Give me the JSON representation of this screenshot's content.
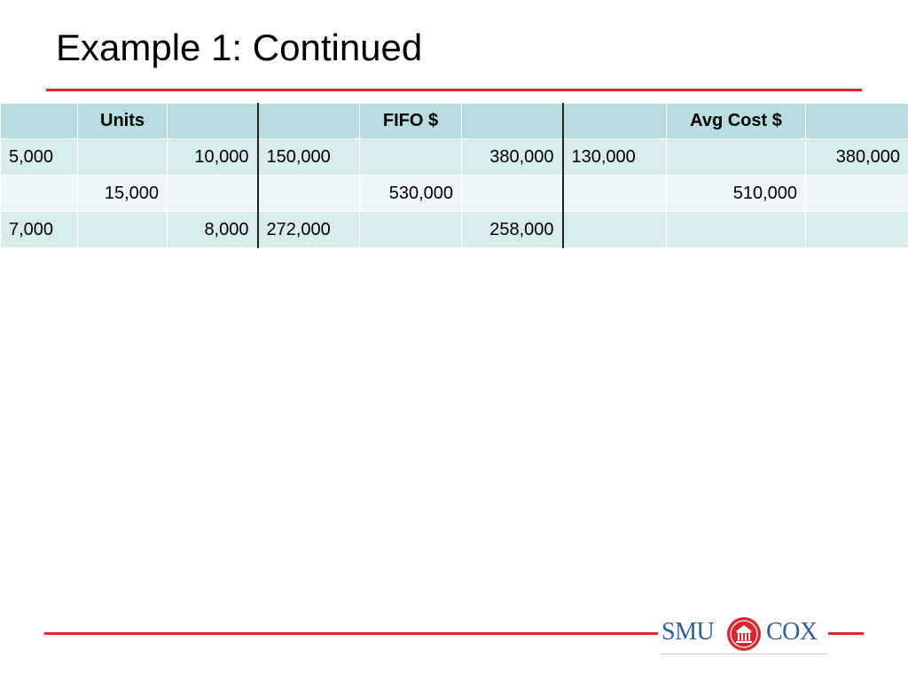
{
  "slide": {
    "title": "Example 1: Continued"
  },
  "colors": {
    "accent_red": "#e3262d",
    "header_fill": "#b7dde1",
    "row_fill_1": "#d8ecee",
    "row_fill_2": "#eef6f7",
    "logo_blue": "#2e5e9c",
    "logo_red": "#d6282e"
  },
  "table": {
    "headers": [
      "",
      "Units",
      "",
      "",
      "FIFO $",
      "",
      "",
      "Avg Cost $",
      ""
    ],
    "rows": [
      [
        "5,000",
        "",
        "10,000",
        "150,000",
        "",
        "380,000",
        "130,000",
        "",
        "380,000"
      ],
      [
        "",
        "15,000",
        "",
        "",
        "530,000",
        "",
        "",
        "510,000",
        ""
      ],
      [
        "7,000",
        "",
        "8,000",
        "272,000",
        "",
        "258,000",
        "",
        "",
        ""
      ]
    ]
  },
  "logo": {
    "left_text": "SMU",
    "right_text": "COX",
    "seal_icon": "smu-seal-icon"
  }
}
